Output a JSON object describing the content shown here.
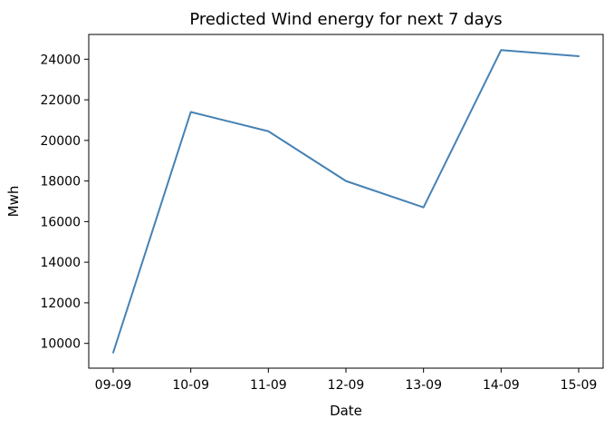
{
  "chart_data": {
    "type": "line",
    "title": "Predicted Wind energy for next 7 days",
    "xlabel": "Date",
    "ylabel": "Mwh",
    "categories": [
      "09-09",
      "10-09",
      "11-09",
      "12-09",
      "13-09",
      "14-09",
      "15-09"
    ],
    "series": [
      {
        "values": [
          9550,
          21400,
          20450,
          18000,
          16700,
          24450,
          24150
        ],
        "color": "#4682b4"
      }
    ],
    "yticks": [
      10000,
      12000,
      14000,
      16000,
      18000,
      20000,
      22000,
      24000
    ],
    "ylim": [
      8780,
      25220
    ],
    "grid": false,
    "legend": "none"
  }
}
